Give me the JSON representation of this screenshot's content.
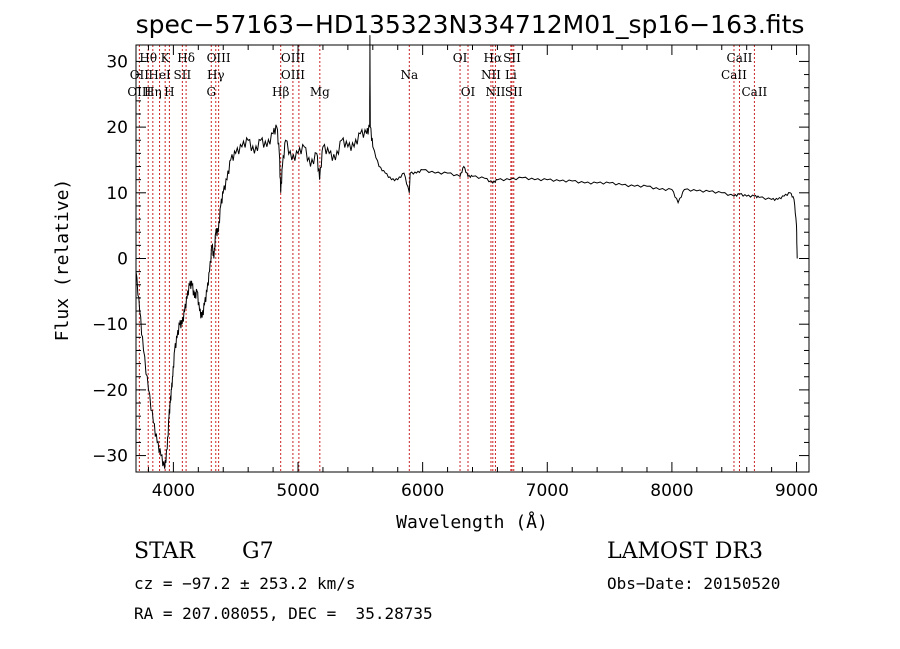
{
  "chart_data": {
    "type": "line",
    "title": "spec−57163−HD135323N334712M01_sp16−163.fits",
    "xlabel": "Wavelength (Å)",
    "ylabel": "Flux (relative)",
    "xlim": [
      3700,
      9100
    ],
    "ylim": [
      -32.5,
      32.5
    ],
    "x_ticks": [
      4000,
      5000,
      6000,
      7000,
      8000,
      9000
    ],
    "y_ticks": [
      -30,
      -20,
      -10,
      0,
      10,
      20,
      30
    ],
    "grid": false,
    "series": [
      {
        "color": "#000000",
        "x": [
          3700,
          3730,
          3760,
          3800,
          3840,
          3870,
          3900,
          3930,
          3950,
          3965,
          3975,
          3985,
          3995,
          4010,
          4030,
          4050,
          4070,
          4090,
          4110,
          4130,
          4150,
          4170,
          4190,
          4210,
          4230,
          4250,
          4270,
          4290,
          4310,
          4325,
          4340,
          4360,
          4380,
          4400,
          4430,
          4460,
          4500,
          4550,
          4600,
          4650,
          4700,
          4750,
          4800,
          4830,
          4850,
          4861,
          4875,
          4900,
          4950,
          5000,
          5050,
          5100,
          5150,
          5173,
          5200,
          5250,
          5300,
          5350,
          5400,
          5450,
          5500,
          5550,
          5575,
          5577,
          5580,
          5600,
          5650,
          5700,
          5750,
          5800,
          5850,
          5893,
          5900,
          5950,
          6000,
          6100,
          6200,
          6300,
          6330,
          6364,
          6400,
          6500,
          6563,
          6600,
          6700,
          6800,
          6900,
          7000,
          7100,
          7200,
          7300,
          7400,
          7500,
          7600,
          7700,
          7800,
          7900,
          8000,
          8050,
          8100,
          8200,
          8300,
          8400,
          8498,
          8542,
          8600,
          8662,
          8700,
          8800,
          8850,
          8900,
          8950,
          8980,
          9000,
          9005
        ],
        "y": [
          -2,
          -8,
          -14,
          -20,
          -25,
          -28,
          -30,
          -32,
          -29,
          -24,
          -22,
          -20,
          -18,
          -14,
          -12,
          -10,
          -10,
          -8,
          -6,
          -4,
          -4,
          -6,
          -5,
          -8,
          -9,
          -7,
          -5,
          -2,
          2,
          0,
          4,
          4,
          8,
          10,
          12,
          15,
          16,
          17,
          18,
          16,
          18,
          17,
          19,
          20,
          16,
          10,
          14,
          18,
          15,
          16,
          17,
          14,
          16,
          12,
          17,
          16,
          15,
          18,
          17,
          17,
          19,
          19,
          20,
          34,
          20,
          17,
          14,
          13,
          12,
          12,
          13,
          10,
          13,
          13,
          13.5,
          13,
          13,
          12.5,
          14,
          12.5,
          12.5,
          12.2,
          11.5,
          12,
          12,
          12.3,
          12,
          12,
          11.8,
          11.8,
          11.5,
          11.5,
          11.5,
          11.2,
          11,
          11,
          10.5,
          10.5,
          8.5,
          10.5,
          10.3,
          10.2,
          10,
          9.5,
          9.8,
          9.5,
          9.5,
          9.3,
          9,
          9,
          9.5,
          10,
          9,
          5,
          0
        ]
      }
    ],
    "annotations": [
      {
        "label": "Hθ",
        "x": 3798,
        "row": 0
      },
      {
        "label": "OII",
        "x": 3727,
        "row": 1
      },
      {
        "label": "OIII",
        "x": 3727,
        "row": 2
      },
      {
        "label": "Hη",
        "x": 3835,
        "row": 2
      },
      {
        "label": "K",
        "x": 3934,
        "row": 0
      },
      {
        "label": "HeI",
        "x": 3889,
        "row": 1
      },
      {
        "label": "H",
        "x": 3968,
        "row": 2
      },
      {
        "label": "SII",
        "x": 4072,
        "row": 1
      },
      {
        "label": "Hδ",
        "x": 4102,
        "row": 0
      },
      {
        "label": "OIII",
        "x": 4363,
        "row": 0
      },
      {
        "label": "Hγ",
        "x": 4340,
        "row": 1
      },
      {
        "label": "G",
        "x": 4304,
        "row": 2
      },
      {
        "label": "OIII",
        "x": 4959,
        "row": 0
      },
      {
        "label": "OIII",
        "x": 4959,
        "row": 1
      },
      {
        "label": "Hβ",
        "x": 4861,
        "row": 2
      },
      {
        "label": "Mg",
        "x": 5175,
        "row": 2
      },
      {
        "label": "Na",
        "x": 5893,
        "row": 1
      },
      {
        "label": "OI",
        "x": 6300,
        "row": 0
      },
      {
        "label": "OI",
        "x": 6364,
        "row": 2
      },
      {
        "label": "Hα",
        "x": 6563,
        "row": 0
      },
      {
        "label": "SII",
        "x": 6717,
        "row": 0
      },
      {
        "label": "NII",
        "x": 6548,
        "row": 1
      },
      {
        "label": "Li",
        "x": 6708,
        "row": 1
      },
      {
        "label": "NII",
        "x": 6584,
        "row": 2
      },
      {
        "label": "SII",
        "x": 6731,
        "row": 2
      },
      {
        "label": "CaII",
        "x": 8542,
        "row": 0
      },
      {
        "label": "CaII",
        "x": 8498,
        "row": 1
      },
      {
        "label": "CaII",
        "x": 8662,
        "row": 2
      }
    ],
    "marker_lines": [
      3727,
      3798,
      3835,
      3889,
      3934,
      3968,
      4072,
      4102,
      4304,
      4340,
      4363,
      4861,
      4959,
      5007,
      5175,
      5893,
      6300,
      6364,
      6548,
      6563,
      6584,
      6708,
      6717,
      6731,
      8498,
      8542,
      8662
    ],
    "marker_color": "#cc2222"
  },
  "info": {
    "object_class": "STAR",
    "subclass": "G7",
    "survey": "LAMOST DR3",
    "redshift": "cz = −97.2 ± 253.2 km/s",
    "obs_date": "Obs−Date: 20150520",
    "coords": "RA = 207.08055, DEC =  35.28735"
  }
}
